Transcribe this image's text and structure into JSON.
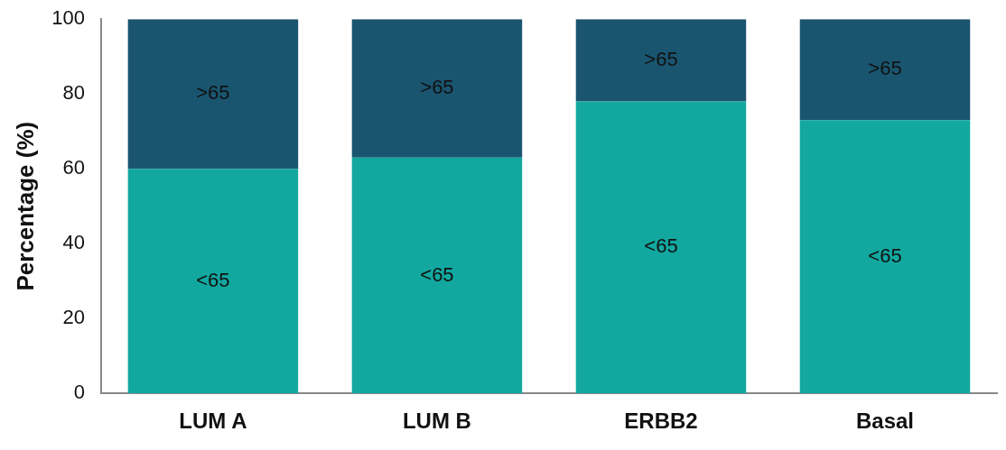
{
  "chart_data": {
    "type": "bar",
    "stacked": true,
    "ylabel": "Percentage (%)",
    "categories": [
      "LUM A",
      "LUM B",
      "ERBB2",
      "Basal"
    ],
    "series": [
      {
        "name": "<65",
        "color": "#12a8a0",
        "values": [
          60,
          63,
          78,
          73
        ]
      },
      {
        "name": ">65",
        "color": "#1a5570",
        "values": [
          40,
          37,
          22,
          27
        ]
      }
    ],
    "ylim": [
      0,
      100
    ],
    "yticks": [
      0,
      20,
      40,
      60,
      80,
      100
    ],
    "grid": false,
    "legend": false
  }
}
